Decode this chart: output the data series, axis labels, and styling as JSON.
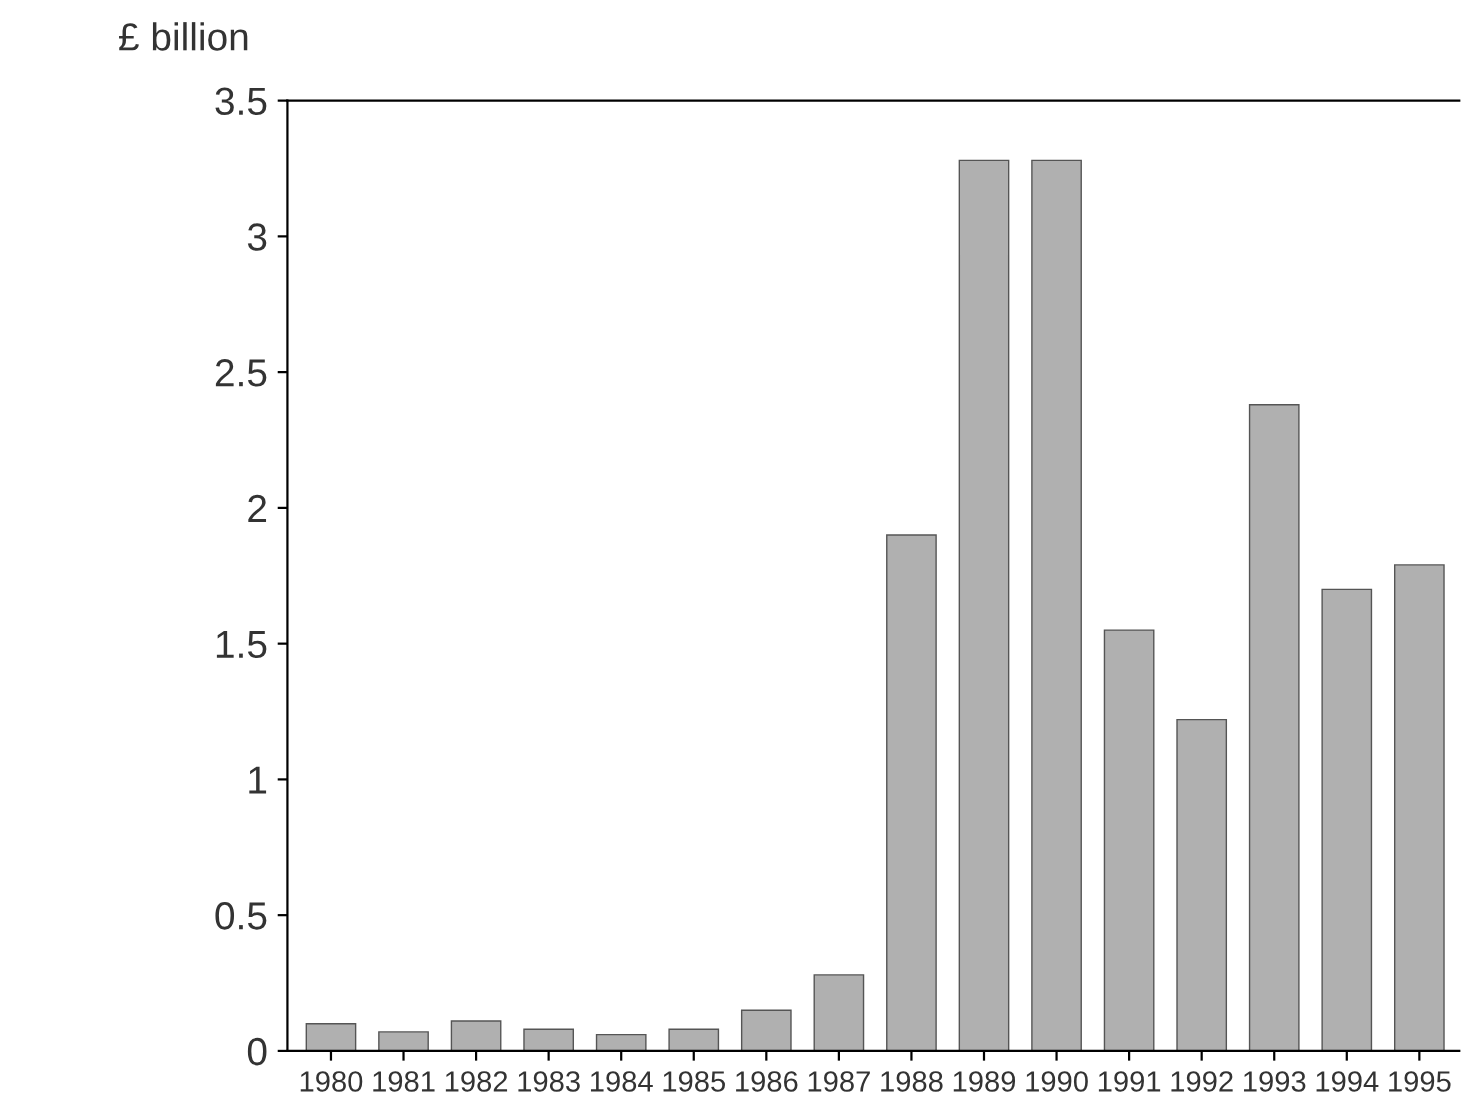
{
  "chart_data": {
    "type": "bar",
    "ylabel": "£ billion",
    "categories": [
      "1980",
      "1981",
      "1982",
      "1983",
      "1984",
      "1985",
      "1986",
      "1987",
      "1988",
      "1989",
      "1990",
      "1991",
      "1992",
      "1993",
      "1994",
      "1995"
    ],
    "values": [
      0.1,
      0.07,
      0.11,
      0.08,
      0.06,
      0.08,
      0.15,
      0.28,
      1.9,
      3.28,
      3.28,
      1.55,
      1.22,
      2.38,
      1.7,
      1.79
    ],
    "color": "#b0b0b0",
    "ylim": [
      0,
      3.5
    ],
    "yticks": [
      0,
      {
        "value": 0.5,
        "label": "0.5"
      },
      1,
      {
        "value": 1.5,
        "label": "1.5"
      },
      2,
      {
        "value": 2.5,
        "label": "2.5"
      },
      3,
      {
        "value": 3.5,
        "label": "3.5"
      }
    ],
    "grid": false
  }
}
